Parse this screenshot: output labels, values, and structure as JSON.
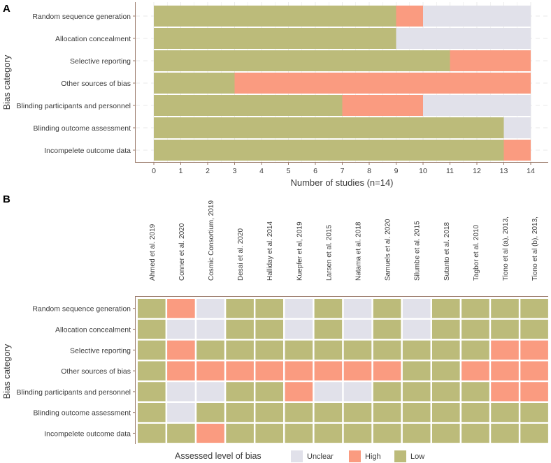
{
  "chart_data": [
    {
      "panel": "A",
      "type": "bar",
      "orientation": "horizontal",
      "stacked": true,
      "xlabel": "Number of studies (n=14)",
      "ylabel": "Bias category",
      "xlim": [
        0,
        14
      ],
      "xticks": [
        "0",
        "1",
        "2",
        "3",
        "4",
        "5",
        "6",
        "7",
        "8",
        "9",
        "10",
        "11",
        "12",
        "13",
        "14"
      ],
      "grid": true,
      "categories": [
        "Random sequence generation",
        "Allocation concealment",
        "Selective reporting",
        "Other sources of bias",
        "Blinding  participants and personnel",
        "Blinding  outcome assessment",
        "Incompelete outcome data"
      ],
      "series": [
        {
          "name": "Low",
          "color": "#bcbb7a",
          "values": [
            9,
            9,
            11,
            3,
            7,
            13,
            13
          ]
        },
        {
          "name": "High",
          "color": "#fa9b80",
          "values": [
            1,
            0,
            3,
            11,
            3,
            0,
            1
          ]
        },
        {
          "name": "Unclear",
          "color": "#e1e1ea",
          "values": [
            4,
            5,
            0,
            0,
            4,
            1,
            0
          ]
        }
      ]
    },
    {
      "panel": "B",
      "type": "heatmap",
      "ylabel": "Bias category",
      "legend_title": "Assessed level of bias",
      "legend_position": "bottom",
      "levels": [
        {
          "code": "U",
          "name": "Unclear",
          "color": "#e1e1ea"
        },
        {
          "code": "H",
          "name": "High",
          "color": "#fa9b80"
        },
        {
          "code": "L",
          "name": "Low",
          "color": "#bcbb7a"
        }
      ],
      "studies": [
        "Ahmed et al. 2019",
        "Conner et al. 2020",
        "Cosmic Consortium, 2019",
        "Desai et al. 2020",
        "Halliday et al. 2014",
        "Kuepfer et al, 2019",
        "Larsen et al. 2015",
        "Natama et al. 2018",
        "Samuels et al. 2020",
        "Silumbe et al. 2015",
        "Sutanto et al. 2018",
        "Tagbor et al. 2010",
        "Tiono et al (a), 2013,",
        "Tiono et al (b), 2013,"
      ],
      "categories": [
        "Random sequence generation",
        "Allocation concealment",
        "Selective reporting",
        "Other sources of bias",
        "Blinding  participants and personnel",
        "Blinding  outcome assessment",
        "Incompelete outcome data"
      ],
      "values": [
        [
          "L",
          "H",
          "U",
          "L",
          "L",
          "U",
          "L",
          "U",
          "L",
          "U",
          "L",
          "L",
          "L",
          "L"
        ],
        [
          "L",
          "U",
          "U",
          "L",
          "L",
          "U",
          "L",
          "U",
          "L",
          "U",
          "L",
          "L",
          "L",
          "L"
        ],
        [
          "L",
          "H",
          "L",
          "L",
          "L",
          "L",
          "L",
          "L",
          "L",
          "L",
          "L",
          "L",
          "H",
          "H"
        ],
        [
          "L",
          "H",
          "H",
          "H",
          "H",
          "H",
          "H",
          "H",
          "H",
          "L",
          "L",
          "H",
          "H",
          "H"
        ],
        [
          "L",
          "U",
          "U",
          "L",
          "L",
          "H",
          "U",
          "U",
          "L",
          "L",
          "L",
          "L",
          "H",
          "H"
        ],
        [
          "L",
          "U",
          "L",
          "L",
          "L",
          "L",
          "L",
          "L",
          "L",
          "L",
          "L",
          "L",
          "L",
          "L"
        ],
        [
          "L",
          "L",
          "H",
          "L",
          "L",
          "L",
          "L",
          "L",
          "L",
          "L",
          "L",
          "L",
          "L",
          "L"
        ]
      ]
    }
  ]
}
